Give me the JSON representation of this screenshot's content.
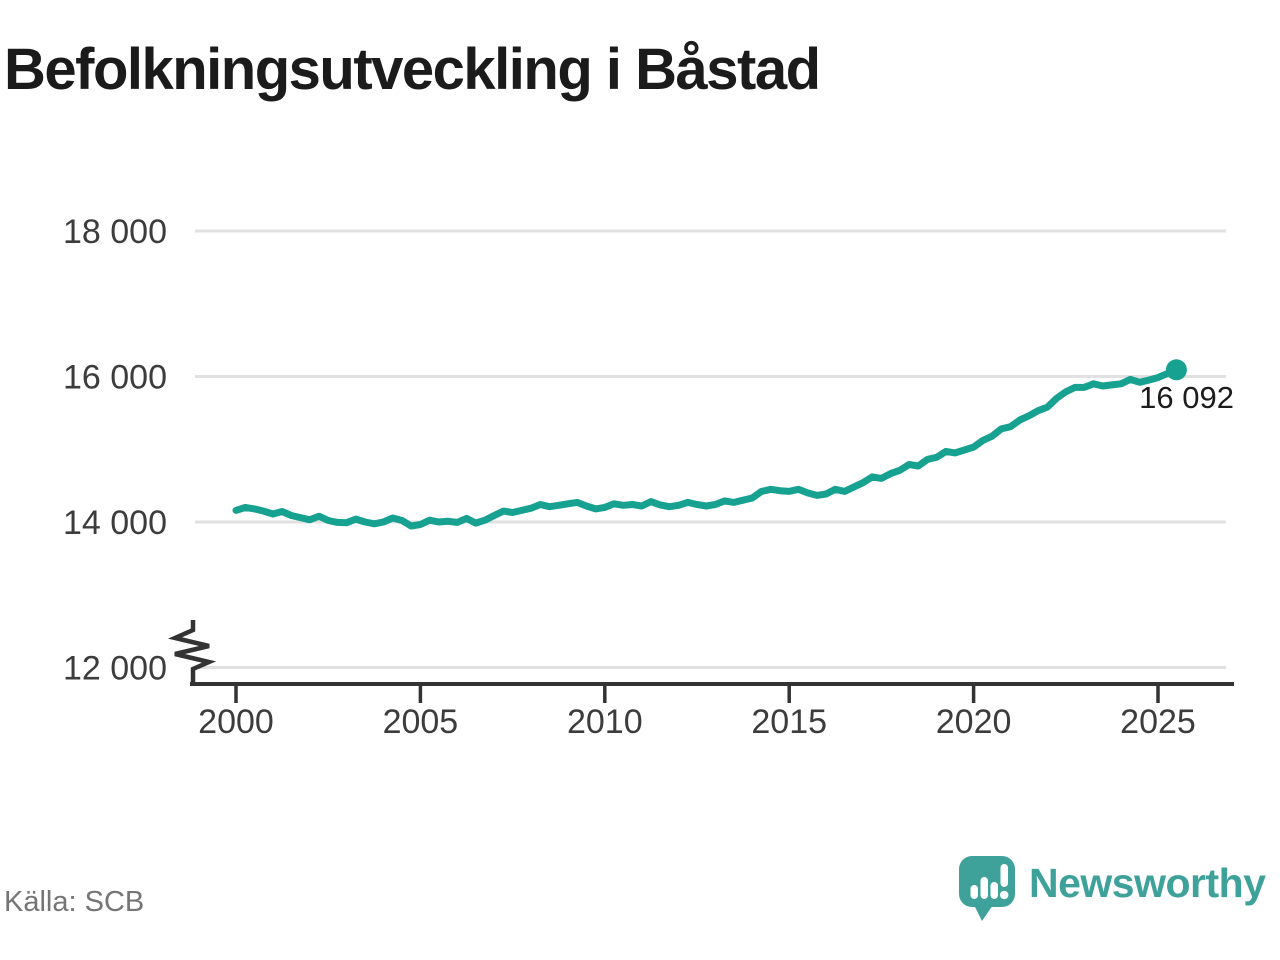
{
  "title": "Befolkningsutveckling i Båstad",
  "source": "Källa: SCB",
  "logo": {
    "text": "Newsworthy",
    "icon": "newsworthy-speech-bubble-bar-chart-icon"
  },
  "colors": {
    "line": "#16A191",
    "grid": "#E1E1E1",
    "axis": "#333333",
    "tick_label": "#3C3C3C",
    "annotation": "#1C1C1C",
    "title": "#1B1B1B",
    "source": "#757575",
    "logo": "#3EA29A"
  },
  "chart_data": {
    "type": "line",
    "title": "Befolkningsutveckling i Båstad",
    "xlabel": "",
    "ylabel": "",
    "grid": "horizontal",
    "legend": "none",
    "y_axis_truncated": true,
    "axis_break": true,
    "ylim_displayed": [
      12000,
      18000
    ],
    "xlim": [
      1999.8,
      2027
    ],
    "y_ticks": [
      "18 000",
      "16 000",
      "14 000",
      "12 000"
    ],
    "y_tick_values": [
      18000,
      16000,
      14000,
      12000
    ],
    "x_ticks": [
      "2000",
      "2005",
      "2010",
      "2015",
      "2020",
      "2025"
    ],
    "x_tick_values": [
      2000,
      2005,
      2010,
      2015,
      2020,
      2025
    ],
    "x_start": 2000.0,
    "x_step": 0.25,
    "x_end": 2025.5,
    "x_unit": "year (quarterly observations)",
    "values": [
      14160,
      14200,
      14180,
      14150,
      14110,
      14145,
      14090,
      14060,
      14030,
      14080,
      14020,
      13995,
      13990,
      14040,
      14000,
      13975,
      14000,
      14055,
      14020,
      13945,
      13965,
      14025,
      14000,
      14010,
      13995,
      14050,
      13985,
      14025,
      14090,
      14150,
      14130,
      14160,
      14190,
      14240,
      14210,
      14230,
      14250,
      14270,
      14220,
      14180,
      14200,
      14250,
      14230,
      14240,
      14220,
      14280,
      14235,
      14210,
      14230,
      14270,
      14240,
      14220,
      14240,
      14290,
      14270,
      14300,
      14330,
      14420,
      14450,
      14430,
      14420,
      14450,
      14400,
      14365,
      14385,
      14450,
      14420,
      14480,
      14540,
      14620,
      14600,
      14665,
      14710,
      14790,
      14770,
      14860,
      14890,
      14970,
      14950,
      14990,
      15030,
      15120,
      15180,
      15280,
      15310,
      15400,
      15460,
      15530,
      15580,
      15700,
      15790,
      15850,
      15850,
      15900,
      15870,
      15885,
      15900,
      15960,
      15920,
      15950,
      15985,
      16040,
      16092
    ],
    "end": {
      "label": "16 092",
      "value": 16092,
      "x": 2025.5
    }
  }
}
